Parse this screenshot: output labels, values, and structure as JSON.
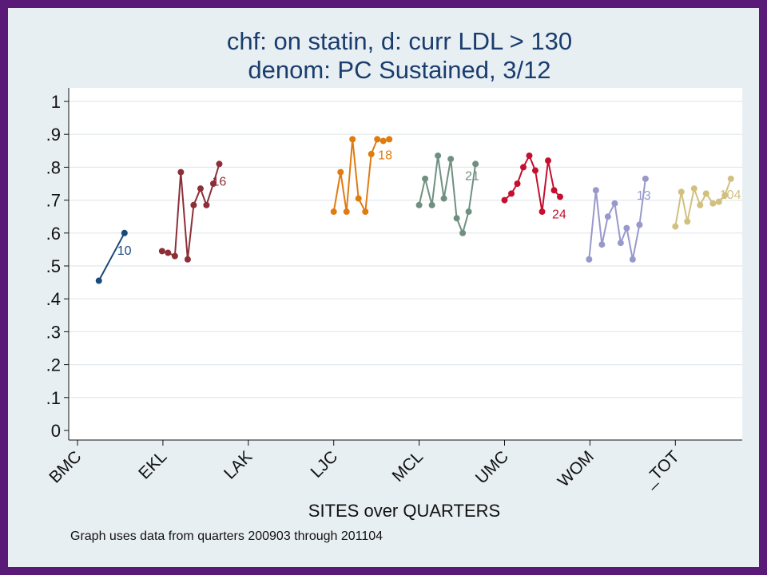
{
  "chart_data": {
    "type": "line",
    "title_lines": [
      "chf: on statin, d: curr LDL > 130",
      "denom: PC Sustained, 3/12"
    ],
    "xlabel": "SITES over QUARTERS",
    "ylabel": "",
    "note": "Graph uses data from quarters 200903 through 201104",
    "ylim": [
      0,
      1
    ],
    "yticks": [
      "0",
      ".1",
      ".2",
      ".3",
      ".4",
      ".5",
      ".6",
      ".7",
      ".8",
      ".9",
      "1"
    ],
    "categories": [
      "BMC",
      "EKL",
      "LAK",
      "LJC",
      "MCL",
      "UMC",
      "WOM",
      "_TOT"
    ],
    "grid": true,
    "series": [
      {
        "site": "BMC",
        "color": "#1a4a7a",
        "label": "10",
        "x": [
          1.25,
          1.55
        ],
        "values": [
          0.455,
          0.6
        ]
      },
      {
        "site": "EKL",
        "color": "#8c2f38",
        "label": "16",
        "x": [
          1.99,
          2.06,
          2.14,
          2.21,
          2.29,
          2.36,
          2.44,
          2.51,
          2.59,
          2.66
        ],
        "values": [
          0.545,
          0.54,
          0.53,
          0.785,
          0.52,
          0.685,
          0.735,
          0.685,
          0.75,
          0.81
        ]
      },
      {
        "site": "LJC",
        "color": "#e07b10",
        "label": "18",
        "x": [
          4.0,
          4.08,
          4.15,
          4.22,
          4.29,
          4.37,
          4.44,
          4.51,
          4.58,
          4.65
        ],
        "values": [
          0.665,
          0.785,
          0.665,
          0.885,
          0.705,
          0.665,
          0.84,
          0.885,
          0.88,
          0.885
        ]
      },
      {
        "site": "MCL",
        "color": "#6f9080",
        "label": "21",
        "x": [
          5.0,
          5.07,
          5.15,
          5.22,
          5.29,
          5.37,
          5.44,
          5.51,
          5.58,
          5.66
        ],
        "values": [
          0.685,
          0.765,
          0.685,
          0.835,
          0.705,
          0.825,
          0.645,
          0.6,
          0.665,
          0.81
        ]
      },
      {
        "site": "UMC",
        "color": "#c4102e",
        "label": "24",
        "x": [
          6.0,
          6.08,
          6.15,
          6.22,
          6.29,
          6.36,
          6.44,
          6.51,
          6.58,
          6.65
        ],
        "values": [
          0.7,
          0.72,
          0.75,
          0.8,
          0.835,
          0.79,
          0.665,
          0.82,
          0.73,
          0.71
        ]
      },
      {
        "site": "WOM",
        "color": "#9898cc",
        "label": "13",
        "x": [
          6.99,
          7.07,
          7.14,
          7.21,
          7.29,
          7.36,
          7.43,
          7.5,
          7.58,
          7.65
        ],
        "values": [
          0.52,
          0.73,
          0.565,
          0.65,
          0.69,
          0.57,
          0.615,
          0.52,
          0.625,
          0.765
        ]
      },
      {
        "site": "_TOT",
        "color": "#d2c080",
        "label": "104",
        "x": [
          8.0,
          8.07,
          8.14,
          8.22,
          8.29,
          8.36,
          8.44,
          8.51,
          8.58,
          8.65
        ],
        "values": [
          0.62,
          0.725,
          0.635,
          0.735,
          0.685,
          0.72,
          0.69,
          0.695,
          0.715,
          0.765
        ]
      }
    ]
  }
}
